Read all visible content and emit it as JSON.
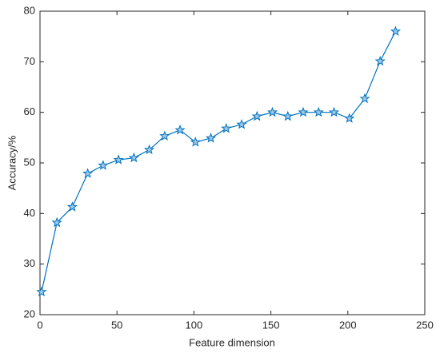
{
  "chart_data": {
    "type": "line",
    "x_label": "Feature dimension",
    "y_label": "Accuracy/%",
    "x": [
      1,
      11,
      21,
      31,
      41,
      51,
      61,
      71,
      81,
      91,
      101,
      111,
      121,
      131,
      141,
      151,
      161,
      171,
      181,
      191,
      201,
      211,
      221,
      231
    ],
    "series": [
      {
        "color": "#0072bd",
        "values": [
          24.5,
          38.2,
          41.3,
          47.9,
          49.5,
          50.6,
          51.0,
          52.6,
          55.3,
          56.5,
          54.1,
          54.9,
          56.8,
          57.6,
          59.2,
          60.0,
          59.2,
          60.0,
          60.0,
          60.0,
          58.8,
          62.7,
          70.1,
          76.0
        ]
      }
    ],
    "xlim": [
      0,
      250
    ],
    "xticks": [
      0,
      50,
      100,
      150,
      200,
      250
    ],
    "ylim": [
      20,
      80
    ],
    "yticks": [
      20,
      30,
      40,
      50,
      60,
      70,
      80
    ],
    "marker": "star",
    "grid": false
  }
}
